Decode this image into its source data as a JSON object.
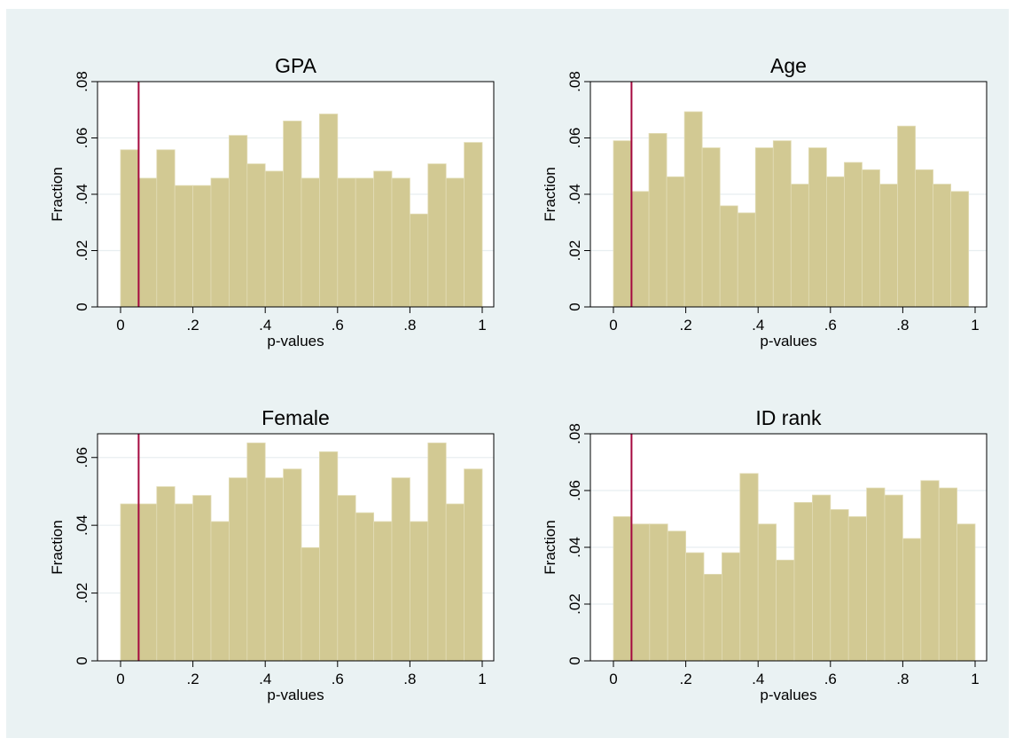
{
  "colors": {
    "page_background": "#ffffff",
    "graph_background": "#eaf2f3",
    "plot_background": "#ffffff",
    "bar_fill": "#d2c993",
    "bar_stroke": "#e2dcb6",
    "reference_line": "#a5093f",
    "grid": "#e8eef0",
    "axis": "#000000"
  },
  "chart_data": [
    {
      "type": "bar",
      "title": "GPA",
      "xlabel": "p-values",
      "ylabel": "Fraction",
      "xlim": [
        0,
        1
      ],
      "ylim": [
        0,
        0.08
      ],
      "xticks": [
        {
          "value": 0,
          "label": "0"
        },
        {
          "value": 0.2,
          "label": ".2"
        },
        {
          "value": 0.4,
          "label": ".4"
        },
        {
          "value": 0.6,
          "label": ".6"
        },
        {
          "value": 0.8,
          "label": ".8"
        },
        {
          "value": 1,
          "label": "1"
        }
      ],
      "yticks": [
        {
          "value": 0,
          "label": "0"
        },
        {
          "value": 0.02,
          "label": ".02"
        },
        {
          "value": 0.04,
          "label": ".04"
        },
        {
          "value": 0.06,
          "label": ".06"
        },
        {
          "value": 0.08,
          "label": ".08"
        }
      ],
      "bin_start": 0,
      "bin_width": 0.05,
      "values": [
        0.0558,
        0.0457,
        0.0558,
        0.0431,
        0.0431,
        0.0457,
        0.0609,
        0.0508,
        0.0482,
        0.066,
        0.0457,
        0.0685,
        0.0457,
        0.0457,
        0.0482,
        0.0457,
        0.033,
        0.0508,
        0.0457,
        0.0584
      ],
      "reference_line_x": 0.05,
      "grid": true
    },
    {
      "type": "bar",
      "title": "Age",
      "xlabel": "p-values",
      "ylabel": "Fraction",
      "xlim": [
        0,
        1
      ],
      "ylim": [
        0,
        0.08
      ],
      "xticks": [
        {
          "value": 0,
          "label": "0"
        },
        {
          "value": 0.2,
          "label": ".2"
        },
        {
          "value": 0.4,
          "label": ".4"
        },
        {
          "value": 0.6,
          "label": ".6"
        },
        {
          "value": 0.8,
          "label": ".8"
        },
        {
          "value": 1,
          "label": "1"
        }
      ],
      "yticks": [
        {
          "value": 0,
          "label": "0"
        },
        {
          "value": 0.02,
          "label": ".02"
        },
        {
          "value": 0.04,
          "label": ".04"
        },
        {
          "value": 0.06,
          "label": ".06"
        },
        {
          "value": 0.08,
          "label": ".08"
        }
      ],
      "bin_start": 0,
      "bin_width": 0.0491,
      "values": [
        0.059,
        0.041,
        0.0616,
        0.0462,
        0.0693,
        0.0565,
        0.0359,
        0.0334,
        0.0565,
        0.059,
        0.0436,
        0.0565,
        0.0462,
        0.0513,
        0.0487,
        0.0436,
        0.0642,
        0.0487,
        0.0436,
        0.041
      ],
      "reference_line_x": 0.05,
      "grid": true
    },
    {
      "type": "bar",
      "title": "Female",
      "xlabel": "p-values",
      "ylabel": "Fraction",
      "xlim": [
        0,
        1
      ],
      "ylim": [
        0,
        0.067
      ],
      "xticks": [
        {
          "value": 0,
          "label": "0"
        },
        {
          "value": 0.2,
          "label": ".2"
        },
        {
          "value": 0.4,
          "label": ".4"
        },
        {
          "value": 0.6,
          "label": ".6"
        },
        {
          "value": 0.8,
          "label": ".8"
        },
        {
          "value": 1,
          "label": "1"
        }
      ],
      "yticks": [
        {
          "value": 0,
          "label": "0"
        },
        {
          "value": 0.02,
          "label": ".02"
        },
        {
          "value": 0.04,
          "label": ".04"
        },
        {
          "value": 0.06,
          "label": ".06"
        }
      ],
      "bin_start": 0,
      "bin_width": 0.05,
      "values": [
        0.0463,
        0.0463,
        0.0514,
        0.0463,
        0.0488,
        0.0411,
        0.054,
        0.0643,
        0.054,
        0.0566,
        0.0334,
        0.0617,
        0.0488,
        0.0437,
        0.0411,
        0.054,
        0.0411,
        0.0643,
        0.0463,
        0.0566
      ],
      "reference_line_x": 0.05,
      "grid": true
    },
    {
      "type": "bar",
      "title": "ID rank",
      "xlabel": "p-values",
      "ylabel": "Fraction",
      "xlim": [
        0,
        1
      ],
      "ylim": [
        0,
        0.08
      ],
      "xticks": [
        {
          "value": 0,
          "label": "0"
        },
        {
          "value": 0.2,
          "label": ".2"
        },
        {
          "value": 0.4,
          "label": ".4"
        },
        {
          "value": 0.6,
          "label": ".6"
        },
        {
          "value": 0.8,
          "label": ".8"
        },
        {
          "value": 1,
          "label": "1"
        }
      ],
      "yticks": [
        {
          "value": 0,
          "label": "0"
        },
        {
          "value": 0.02,
          "label": ".02"
        },
        {
          "value": 0.04,
          "label": ".04"
        },
        {
          "value": 0.06,
          "label": ".06"
        },
        {
          "value": 0.08,
          "label": ".08"
        }
      ],
      "bin_start": 0,
      "bin_width": 0.05,
      "values": [
        0.0508,
        0.0482,
        0.0482,
        0.0457,
        0.0381,
        0.0305,
        0.0381,
        0.066,
        0.0482,
        0.0355,
        0.0558,
        0.0584,
        0.0533,
        0.0508,
        0.0609,
        0.0584,
        0.0431,
        0.0635,
        0.0609,
        0.0482
      ],
      "reference_line_x": 0.05,
      "grid": true
    }
  ]
}
